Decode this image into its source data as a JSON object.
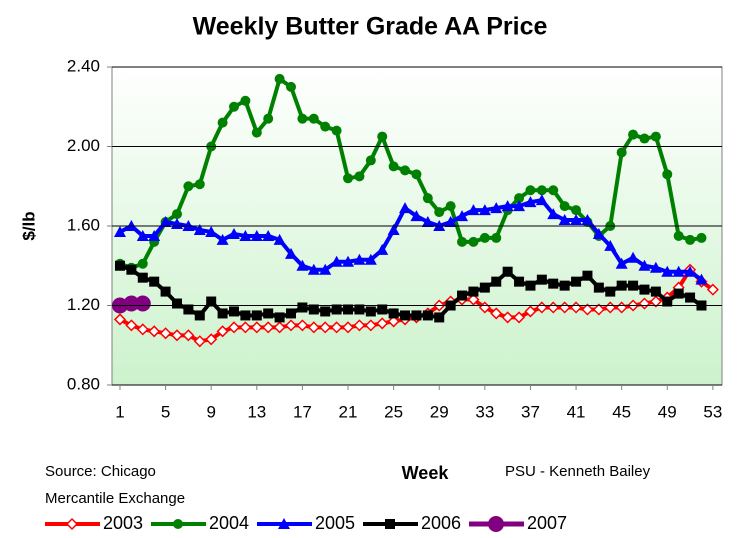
{
  "chart_data": {
    "type": "line",
    "title": "Weekly Butter Grade AA Price",
    "y_label": "$/lb",
    "x_label": "Week",
    "annotations": [
      "Source: Chicago",
      "Mercantile Exchange",
      "PSU - Kenneth Bailey"
    ],
    "x": [
      1,
      2,
      3,
      4,
      5,
      6,
      7,
      8,
      9,
      10,
      11,
      12,
      13,
      14,
      15,
      16,
      17,
      18,
      19,
      20,
      21,
      22,
      23,
      24,
      25,
      26,
      27,
      28,
      29,
      30,
      31,
      32,
      33,
      34,
      35,
      36,
      37,
      38,
      39,
      40,
      41,
      42,
      43,
      44,
      45,
      46,
      47,
      48,
      49,
      50,
      51,
      52,
      53
    ],
    "xlim": [
      0.3,
      53.8
    ],
    "xticks": [
      1,
      5,
      9,
      13,
      17,
      21,
      25,
      29,
      33,
      37,
      41,
      45,
      49,
      53
    ],
    "ylim": [
      0.8,
      2.4
    ],
    "yticks": [
      {
        "value": 0.8,
        "label": "0.80"
      },
      {
        "value": 1.2,
        "label": "1.20"
      },
      {
        "value": 1.6,
        "label": "1.60"
      },
      {
        "value": 2.0,
        "label": "2.00"
      },
      {
        "value": 2.4,
        "label": "2.40"
      }
    ],
    "grid": true,
    "legend": "bottom",
    "series": [
      {
        "name": "2003",
        "color": "#ff0000",
        "marker": "diamond",
        "values": [
          1.13,
          1.1,
          1.08,
          1.07,
          1.06,
          1.05,
          1.05,
          1.02,
          1.03,
          1.07,
          1.09,
          1.09,
          1.09,
          1.09,
          1.09,
          1.1,
          1.1,
          1.09,
          1.09,
          1.09,
          1.09,
          1.1,
          1.1,
          1.11,
          1.12,
          1.13,
          1.14,
          1.16,
          1.2,
          1.22,
          1.23,
          1.23,
          1.19,
          1.16,
          1.14,
          1.14,
          1.17,
          1.19,
          1.19,
          1.19,
          1.19,
          1.18,
          1.18,
          1.19,
          1.19,
          1.2,
          1.21,
          1.22,
          1.24,
          1.29,
          1.38,
          1.32,
          1.28
        ]
      },
      {
        "name": "2004",
        "color": "#008000",
        "marker": "circle",
        "values": [
          1.41,
          1.39,
          1.41,
          1.52,
          1.62,
          1.66,
          1.8,
          1.81,
          2.0,
          2.12,
          2.2,
          2.23,
          2.07,
          2.14,
          2.34,
          2.3,
          2.14,
          2.14,
          2.1,
          2.08,
          1.84,
          1.85,
          1.93,
          2.05,
          1.9,
          1.88,
          1.86,
          1.74,
          1.67,
          1.7,
          1.52,
          1.52,
          1.54,
          1.54,
          1.68,
          1.74,
          1.78,
          1.78,
          1.78,
          1.7,
          1.68,
          1.62,
          1.55,
          1.6,
          1.97,
          2.06,
          2.04,
          2.05,
          1.86,
          1.55,
          1.53,
          1.54,
          null
        ]
      },
      {
        "name": "2005",
        "color": "#0000ff",
        "marker": "triangle",
        "values": [
          1.57,
          1.6,
          1.55,
          1.55,
          1.62,
          1.61,
          1.6,
          1.58,
          1.57,
          1.53,
          1.56,
          1.55,
          1.55,
          1.55,
          1.53,
          1.46,
          1.4,
          1.38,
          1.38,
          1.42,
          1.42,
          1.43,
          1.43,
          1.48,
          1.58,
          1.69,
          1.65,
          1.62,
          1.6,
          1.62,
          1.65,
          1.68,
          1.68,
          1.69,
          1.7,
          1.7,
          1.72,
          1.73,
          1.66,
          1.63,
          1.63,
          1.63,
          1.56,
          1.5,
          1.41,
          1.44,
          1.4,
          1.39,
          1.37,
          1.37,
          1.37,
          1.33,
          null
        ]
      },
      {
        "name": "2006",
        "color": "#000000",
        "marker": "square",
        "values": [
          1.4,
          1.38,
          1.34,
          1.32,
          1.27,
          1.21,
          1.18,
          1.15,
          1.22,
          1.16,
          1.17,
          1.15,
          1.15,
          1.16,
          1.14,
          1.16,
          1.19,
          1.18,
          1.17,
          1.18,
          1.18,
          1.18,
          1.17,
          1.18,
          1.16,
          1.15,
          1.15,
          1.15,
          1.14,
          1.2,
          1.25,
          1.27,
          1.29,
          1.32,
          1.37,
          1.32,
          1.3,
          1.33,
          1.31,
          1.3,
          1.32,
          1.35,
          1.29,
          1.27,
          1.3,
          1.3,
          1.28,
          1.27,
          1.22,
          1.26,
          1.24,
          1.2,
          null
        ]
      },
      {
        "name": "2007",
        "color": "#800080",
        "marker": "bigcircle",
        "values": [
          1.2,
          1.21,
          1.21,
          null,
          null,
          null,
          null,
          null,
          null,
          null,
          null,
          null,
          null,
          null,
          null,
          null,
          null,
          null,
          null,
          null,
          null,
          null,
          null,
          null,
          null,
          null,
          null,
          null,
          null,
          null,
          null,
          null,
          null,
          null,
          null,
          null,
          null,
          null,
          null,
          null,
          null,
          null,
          null,
          null,
          null,
          null,
          null,
          null,
          null,
          null,
          null,
          null,
          null
        ]
      }
    ]
  }
}
